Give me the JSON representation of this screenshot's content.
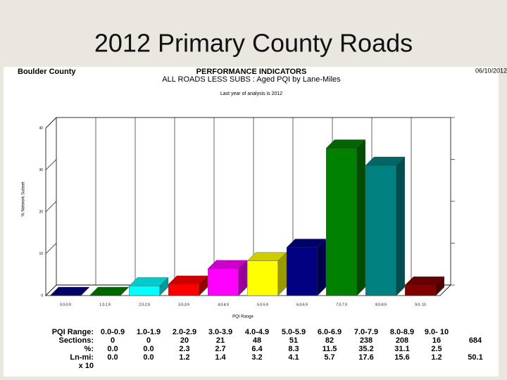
{
  "slide_title": "2012 Primary County Roads",
  "chart_data": {
    "type": "bar3d",
    "org": "Boulder County",
    "title": "PERFORMANCE INDICATORS",
    "subtitle": "ALL ROADS LESS SUBS : Aged PQI by Lane-Miles",
    "note": "Last year of analysis is 2012",
    "date": "06/10/2012",
    "ylabel": "% Network Subset",
    "xlabel": "PQI Range",
    "categories": [
      "0.0-0.9",
      "1.0-1.9",
      "2.0-2.9",
      "3.0-3.9",
      "4.0-4.9",
      "5.0-5.9",
      "6.0-6.9",
      "7.0-7.9",
      "8.0-8.9",
      "9.0- 10"
    ],
    "values": [
      0.0,
      0.0,
      2.3,
      2.7,
      6.4,
      8.3,
      11.5,
      35.2,
      31.1,
      2.5
    ],
    "value_labels": [
      "0.0",
      "0.0",
      "2.3",
      "2.7",
      "6.4",
      "8.3",
      "11.5",
      "35.2",
      "31.1",
      "2.5"
    ],
    "colors": [
      "#000080",
      "#008000",
      "#00ffff",
      "#ff0000",
      "#ff00ff",
      "#ffff00",
      "#000080",
      "#008000",
      "#008080",
      "#800000"
    ],
    "ylim": [
      0,
      40
    ],
    "yticks": [
      0,
      10,
      20,
      30,
      40
    ],
    "table": {
      "range_label": "PQI Range:",
      "sections_label": "Sections:",
      "sections": [
        0,
        0,
        20,
        21,
        48,
        51,
        82,
        238,
        208,
        16
      ],
      "sections_total": 684,
      "percent_label": "%:",
      "lnmi_label": "Ln-mi:",
      "lnmi": [
        "0.0",
        "0.0",
        "1.2",
        "1.4",
        "3.2",
        "4.1",
        "5.7",
        "17.6",
        "15.6",
        "1.2"
      ],
      "lnmi_total": "50.1",
      "lnmi_unit": "x 10"
    }
  }
}
